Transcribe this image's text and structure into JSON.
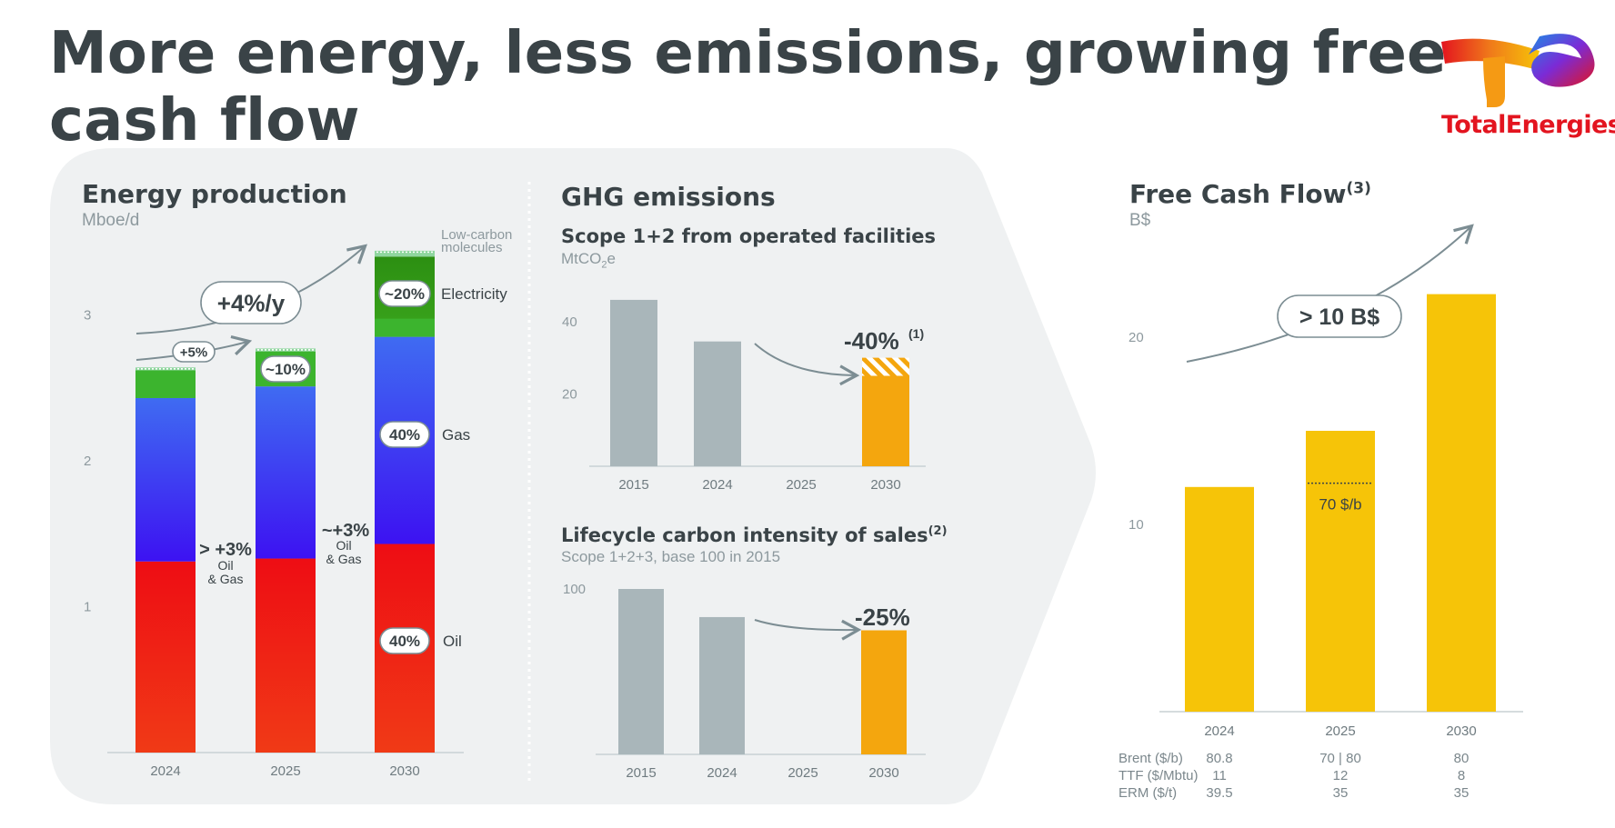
{
  "title": "More energy, less emissions, growing free cash flow",
  "brand": {
    "name": "TotalEnergies"
  },
  "colors": {
    "panel": "#eff1f2",
    "oil": "#e8141c",
    "gas": "#3a2cf5",
    "electricity": "#3cb42e",
    "lowcarbon": "#8fd69e",
    "grey_bar": "#a9b6ba",
    "orange": "#f4a60e",
    "yellow": "#f6c408",
    "text": "#3a4347"
  },
  "energy_production": {
    "title": "Energy production",
    "unit": "Mboe/d",
    "annotations": {
      "cagr": "+4%/y",
      "step_2025": "+5%",
      "oil_gas_2025": "> +3%",
      "oil_gas_2030": "~+3%",
      "oil_gas_line1": "Oil",
      "oil_gas_line2": "& Gas",
      "electricity_share_2025": "~10%",
      "electricity_share_2030": "~20%",
      "gas_share_2030": "40%",
      "oil_share_2030": "40%"
    },
    "legend": {
      "lowcarbon_line1": "Low-carbon",
      "lowcarbon_line2": "molecules",
      "electricity": "Electricity",
      "gas": "Gas",
      "oil": "Oil"
    }
  },
  "ghg": {
    "title": "GHG emissions",
    "scope_title": "Scope 1+2 from operated facilities",
    "scope_unit_prefix": "MtCO",
    "scope_unit_sub": "2",
    "scope_unit_suffix": "e",
    "scope_delta": "-40%",
    "scope_delta_note": "(1)",
    "lci_title": "Lifecycle carbon intensity of sales",
    "lci_note": "(2)",
    "lci_unit": "Scope 1+2+3, base 100 in 2015",
    "lci_delta": "-25%"
  },
  "fcf": {
    "title": "Free Cash Flow",
    "title_note": "(3)",
    "unit": "B$",
    "target": "> 10 B$",
    "price_ref": "70 $/b",
    "assumptions": {
      "rows": [
        {
          "label": "Brent ($/b)",
          "values": [
            "80.8",
            "70 | 80",
            "80"
          ]
        },
        {
          "label": "TTF ($/Mbtu)",
          "values": [
            "11",
            "12",
            "8"
          ]
        },
        {
          "label": "ERM ($/t)",
          "values": [
            "39.5",
            "35",
            "35"
          ]
        }
      ]
    }
  },
  "chart_data": [
    {
      "type": "bar",
      "stacked": true,
      "title": "Energy production",
      "ylabel": "Mboe/d",
      "categories": [
        "2024",
        "2025",
        "2030"
      ],
      "series": [
        {
          "name": "Oil",
          "values": [
            1.31,
            1.33,
            1.43
          ]
        },
        {
          "name": "Gas",
          "values": [
            1.12,
            1.18,
            1.42
          ]
        },
        {
          "name": "Electricity",
          "values": [
            0.19,
            0.24,
            0.55
          ]
        },
        {
          "name": "Low-carbon molecules",
          "values": [
            0.02,
            0.02,
            0.04
          ]
        }
      ],
      "yticks": [
        1,
        2,
        3
      ],
      "ylim": [
        0,
        3.6
      ],
      "grid": false
    },
    {
      "type": "bar",
      "title": "Scope 1+2 from operated facilities",
      "ylabel": "MtCO2e",
      "categories": [
        "2015",
        "2024",
        "2025",
        "2030"
      ],
      "values": [
        46,
        34.5,
        null,
        25
      ],
      "hatched_top_2030": 5,
      "yticks": [
        20,
        40
      ],
      "ylim": [
        0,
        52
      ]
    },
    {
      "type": "bar",
      "title": "Lifecycle carbon intensity of sales",
      "ylabel": "Scope 1+2+3, base 100 in 2015",
      "categories": [
        "2015",
        "2024",
        "2025",
        "2030"
      ],
      "values": [
        100,
        83,
        null,
        75
      ],
      "yticks": [
        100
      ],
      "ylim": [
        0,
        112
      ]
    },
    {
      "type": "bar",
      "title": "Free Cash Flow",
      "ylabel": "B$",
      "categories": [
        "2024",
        "2025",
        "2030"
      ],
      "values": [
        12,
        15,
        22.3
      ],
      "reference_2025": 12.2,
      "yticks": [
        10,
        20
      ],
      "ylim": [
        0,
        26
      ]
    }
  ]
}
